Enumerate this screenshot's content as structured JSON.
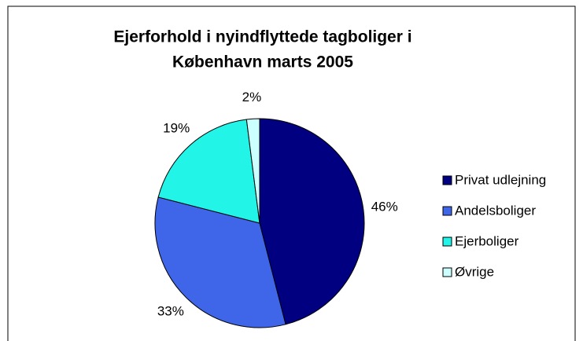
{
  "chart_data": {
    "type": "pie",
    "title": [
      "Ejerforhold i nyindflyttede tagboliger i",
      "København marts 2005"
    ],
    "categories": [
      "Privat udlejning",
      "Andelsboliger",
      "Ejerboliger",
      "Øvrige"
    ],
    "values": [
      46,
      33,
      19,
      2
    ],
    "value_labels": [
      "46%",
      "33%",
      "19%",
      "2%"
    ],
    "colors": [
      "#000080",
      "#3f66e8",
      "#22f5e8",
      "#ccffff"
    ],
    "legend": "right"
  }
}
